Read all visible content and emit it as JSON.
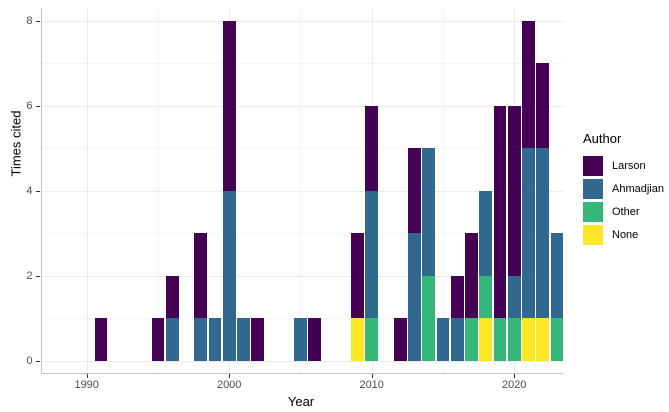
{
  "chart_data": {
    "type": "bar",
    "stacked": true,
    "title": "",
    "xlabel": "Year",
    "ylabel": "Times cited",
    "legend_title": "Author",
    "legend_position": "right",
    "grid": true,
    "x_tick_years": [
      1990,
      2000,
      2010,
      2020
    ],
    "x_minor_years": [
      1995,
      2005,
      2015
    ],
    "y_ticks": [
      0,
      2,
      4,
      6,
      8
    ],
    "y_minor_ticks": [
      1,
      3,
      5,
      7
    ],
    "ylim": [
      0,
      8
    ],
    "xlim": [
      1988.4,
      2023.9
    ],
    "stack_order_bottom_to_top": [
      "None",
      "Other",
      "Ahmadjian",
      "Larson"
    ],
    "legend": [
      {
        "label": "Larson",
        "color": "#440154"
      },
      {
        "label": "Ahmadjian",
        "color": "#31688E"
      },
      {
        "label": "Other",
        "color": "#35B779"
      },
      {
        "label": "None",
        "color": "#FDE725"
      }
    ],
    "bars": [
      {
        "year": 1991,
        "Larson": 1
      },
      {
        "year": 1995,
        "Larson": 1
      },
      {
        "year": 1996,
        "Ahmadjian": 1,
        "Larson": 1
      },
      {
        "year": 1998,
        "Ahmadjian": 1,
        "Larson": 2
      },
      {
        "year": 1999,
        "Ahmadjian": 1
      },
      {
        "year": 2000,
        "Ahmadjian": 4,
        "Larson": 4
      },
      {
        "year": 2001,
        "Ahmadjian": 1
      },
      {
        "year": 2002,
        "Larson": 1
      },
      {
        "year": 2005,
        "Ahmadjian": 1
      },
      {
        "year": 2006,
        "Larson": 1
      },
      {
        "year": 2009,
        "None": 1,
        "Larson": 2
      },
      {
        "year": 2010,
        "Other": 1,
        "Ahmadjian": 3,
        "Larson": 2
      },
      {
        "year": 2012,
        "Larson": 1
      },
      {
        "year": 2013,
        "Ahmadjian": 3,
        "Larson": 2
      },
      {
        "year": 2014,
        "Other": 2,
        "Ahmadjian": 3
      },
      {
        "year": 2015,
        "Ahmadjian": 1
      },
      {
        "year": 2016,
        "Ahmadjian": 1,
        "Larson": 1
      },
      {
        "year": 2017,
        "Other": 1,
        "Larson": 2
      },
      {
        "year": 2018,
        "None": 1,
        "Other": 1,
        "Ahmadjian": 2
      },
      {
        "year": 2019,
        "Other": 1,
        "Larson": 5
      },
      {
        "year": 2020,
        "Other": 1,
        "Ahmadjian": 1,
        "Larson": 4
      },
      {
        "year": 2021,
        "None": 1,
        "Ahmadjian": 4,
        "Larson": 3
      },
      {
        "year": 2022,
        "None": 1,
        "Ahmadjian": 4,
        "Larson": 2
      },
      {
        "year": 2023,
        "Other": 1,
        "Ahmadjian": 2
      }
    ]
  }
}
